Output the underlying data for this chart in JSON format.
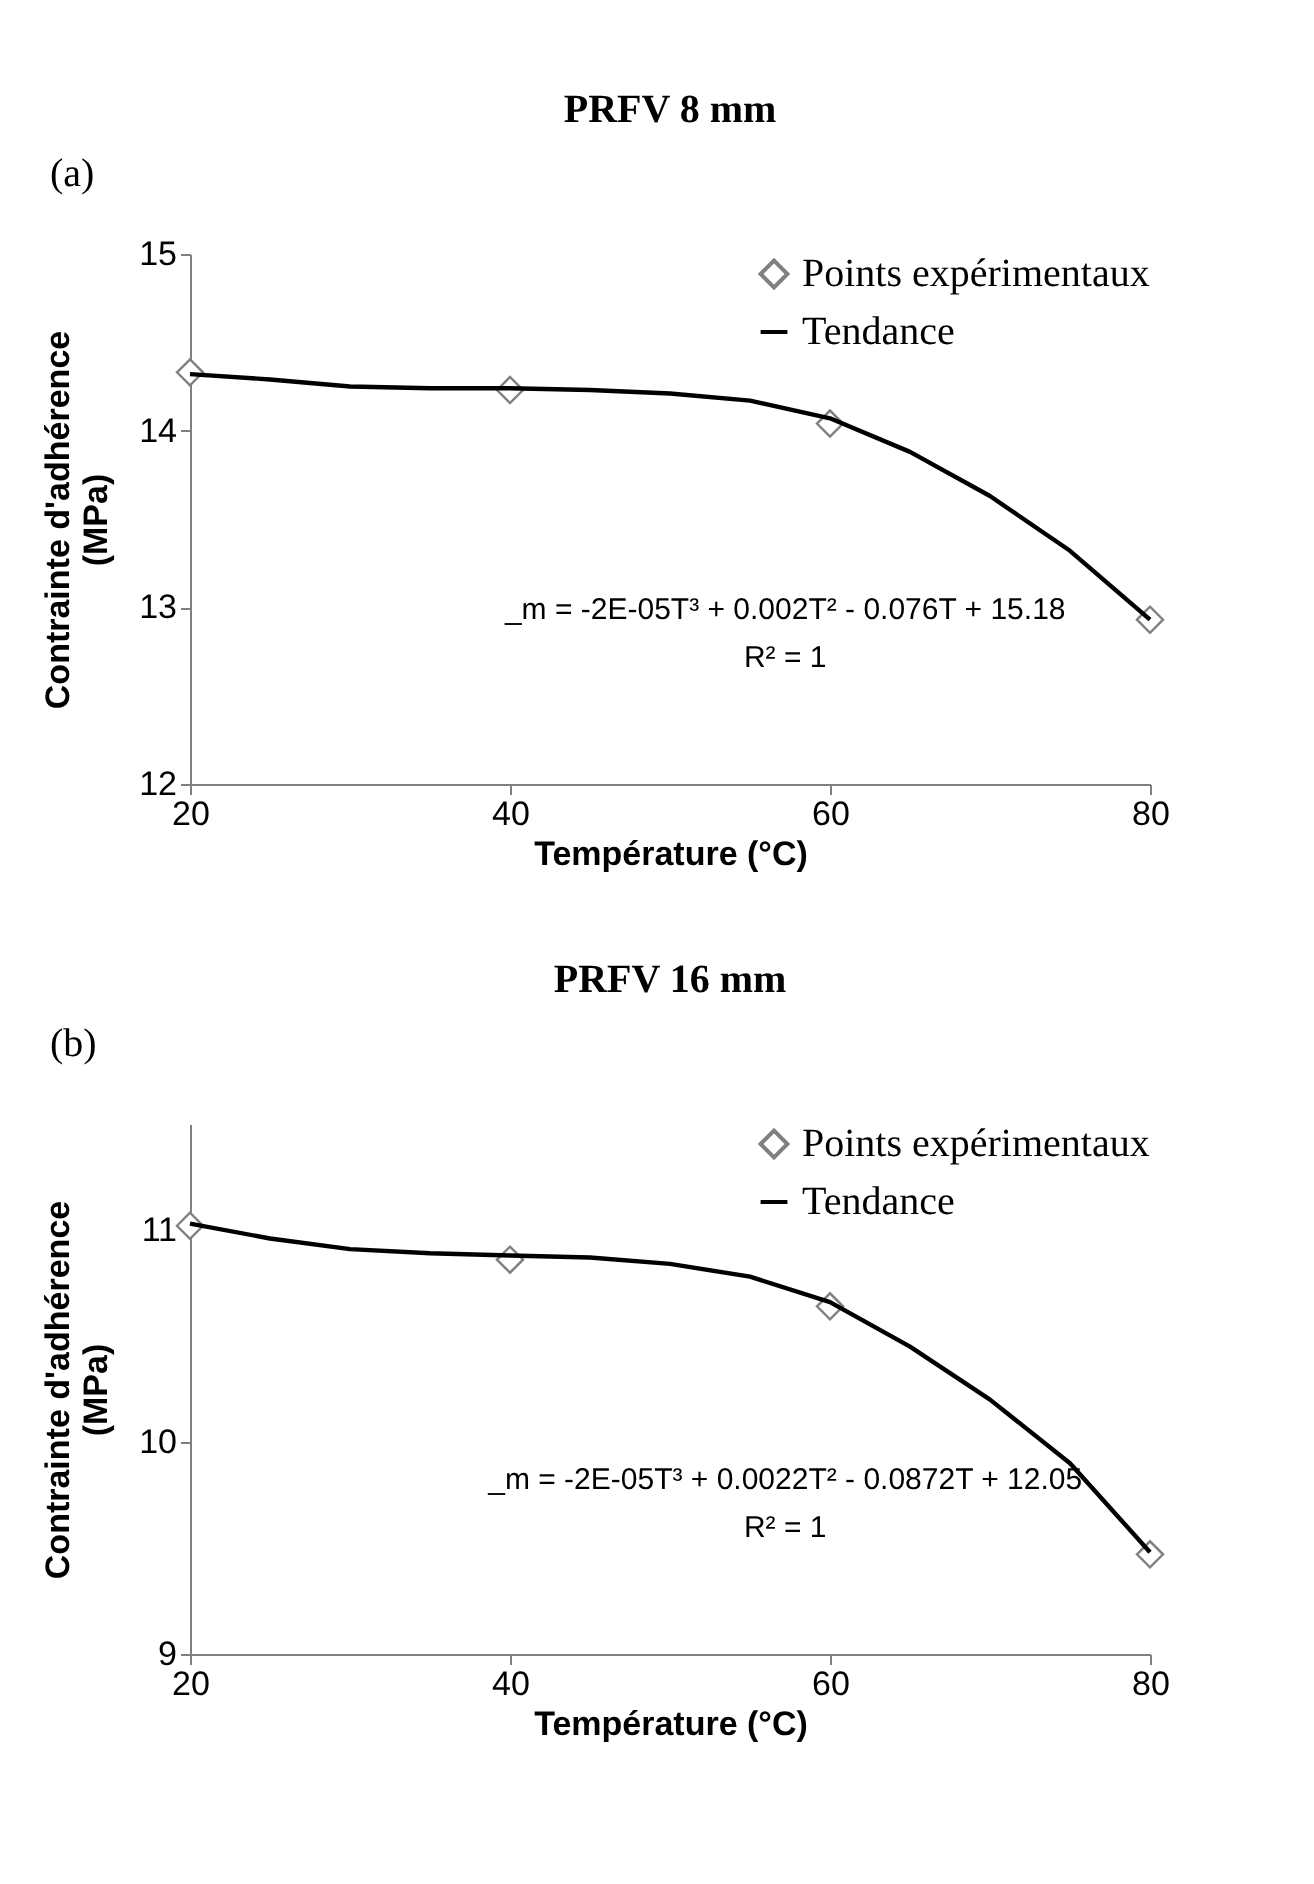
{
  "chart_data": [
    {
      "type": "scatter",
      "title": "PRFV  8 mm",
      "xlabel": "Température (°C)",
      "ylabel": "Contrainte d'adhérence (MPa)",
      "x": [
        20,
        40,
        60,
        80
      ],
      "series": [
        {
          "name": "Points expérimentaux",
          "marker": "diamond",
          "color": "#808080",
          "values": [
            14.33,
            14.23,
            14.04,
            12.93
          ]
        },
        {
          "name": "Tendance",
          "type": "line",
          "color": "#000000",
          "x": [
            20,
            25,
            30,
            35,
            40,
            45,
            50,
            55,
            60,
            65,
            70,
            75,
            80
          ],
          "values": [
            14.32,
            14.29,
            14.25,
            14.24,
            14.24,
            14.23,
            14.21,
            14.17,
            14.07,
            13.88,
            13.63,
            13.32,
            12.93
          ]
        }
      ],
      "xlim": [
        20,
        80
      ],
      "xticks": [
        20,
        40,
        60,
        80
      ],
      "ylim": [
        12,
        15
      ],
      "yticks": [
        12,
        13,
        14,
        15
      ],
      "grid": false,
      "legend": "top right",
      "annotations": [
        "(a)",
        "_m = -2E-05T³ + 0.002T² - 0.076T + 15.18",
        "R² = 1"
      ]
    },
    {
      "type": "scatter",
      "title": "PRFV 16 mm",
      "xlabel": "Température (°C)",
      "ylabel": "Contrainte d'adhérence (MPa)",
      "x": [
        20,
        40,
        60,
        80
      ],
      "series": [
        {
          "name": "Points expérimentaux",
          "marker": "diamond",
          "color": "#808080",
          "values": [
            11.02,
            10.86,
            10.64,
            9.47
          ]
        },
        {
          "name": "Tendance",
          "type": "line",
          "color": "#000000",
          "x": [
            20,
            25,
            30,
            35,
            40,
            45,
            50,
            55,
            60,
            65,
            70,
            75,
            80
          ],
          "values": [
            11.03,
            10.96,
            10.91,
            10.89,
            10.88,
            10.87,
            10.84,
            10.78,
            10.66,
            10.45,
            10.2,
            9.9,
            9.48
          ]
        }
      ],
      "xlim": [
        20,
        80
      ],
      "xticks": [
        20,
        40,
        60,
        80
      ],
      "ylim": [
        9,
        11.5
      ],
      "yticks": [
        9,
        10,
        11
      ],
      "grid": false,
      "legend": "top right",
      "annotations": [
        "(b)",
        "_m = -2E-05T³ + 0.0022T² - 0.0872T + 12.05",
        "R² = 1"
      ]
    }
  ]
}
